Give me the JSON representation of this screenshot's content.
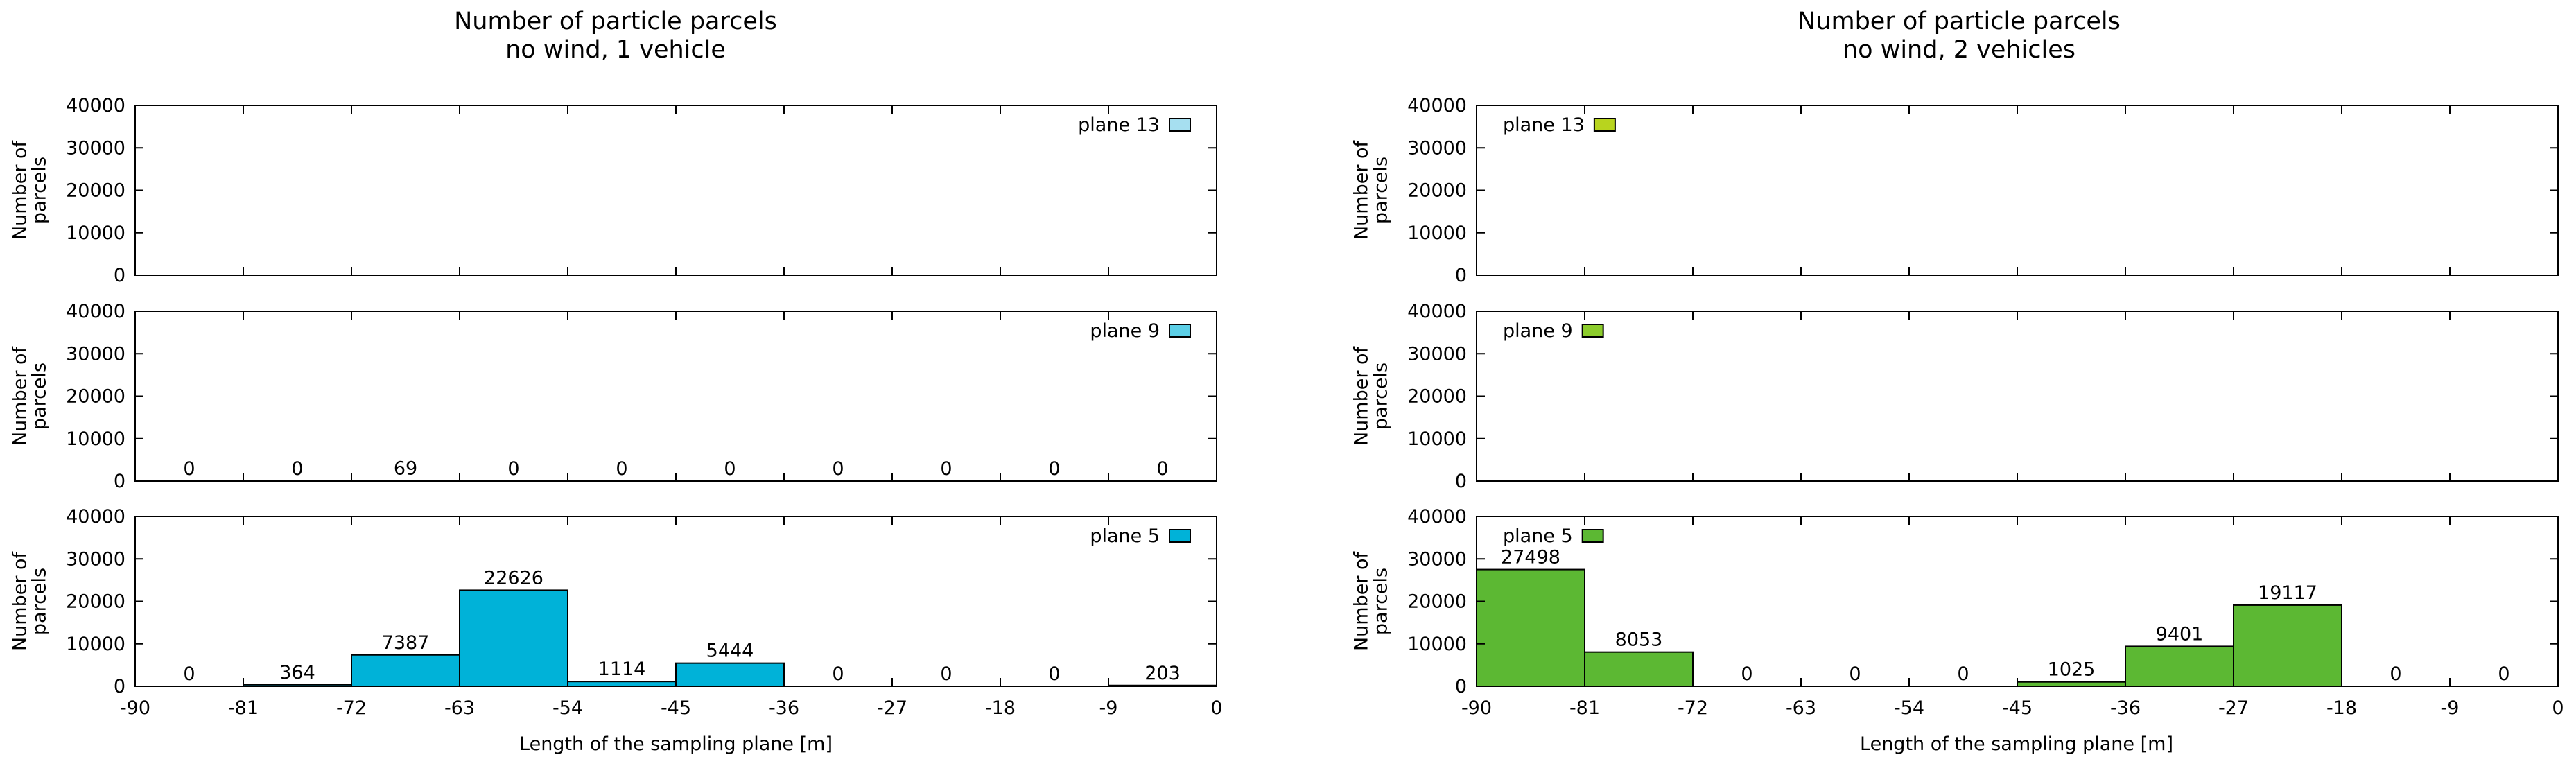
{
  "chart_data": [
    {
      "type": "bar",
      "title_line1": "Number of particle parcels",
      "title_line2": "no wind, 1 vehicle",
      "xlabel": "Length of the sampling plane [m]",
      "ylabel_line1": "Number of",
      "ylabel_line2": "parcels",
      "x_ticks": [
        "-90",
        "-81",
        "-72",
        "-63",
        "-54",
        "-45",
        "-36",
        "-27",
        "-18",
        "-9",
        "0"
      ],
      "y_ticks": [
        "0",
        "10000",
        "20000",
        "30000",
        "40000"
      ],
      "xlim": [
        -90,
        0
      ],
      "ylim": [
        0,
        40000
      ],
      "legend_position": "top-right",
      "panels": [
        {
          "name": "plane 13",
          "color": "#a6dff0",
          "bins": [],
          "values": [],
          "labels": []
        },
        {
          "name": "plane 9",
          "color": "#5ccfe6",
          "bins": [
            [
              -90,
              -81
            ],
            [
              -81,
              -72
            ],
            [
              -72,
              -63
            ],
            [
              -63,
              -54
            ],
            [
              -54,
              -45
            ],
            [
              -45,
              -36
            ],
            [
              -36,
              -27
            ],
            [
              -27,
              -18
            ],
            [
              -18,
              -9
            ],
            [
              -9,
              0
            ]
          ],
          "values": [
            0,
            0,
            69,
            0,
            0,
            0,
            0,
            0,
            0,
            0
          ],
          "labels": [
            "0",
            "0",
            "69",
            "0",
            "0",
            "0",
            "0",
            "0",
            "0",
            "0"
          ]
        },
        {
          "name": "plane 5",
          "color": "#00b2d8",
          "bins": [
            [
              -90,
              -81
            ],
            [
              -81,
              -72
            ],
            [
              -72,
              -63
            ],
            [
              -63,
              -54
            ],
            [
              -54,
              -45
            ],
            [
              -45,
              -36
            ],
            [
              -36,
              -27
            ],
            [
              -27,
              -18
            ],
            [
              -18,
              -9
            ],
            [
              -9,
              0
            ]
          ],
          "values": [
            0,
            364,
            7387,
            22626,
            1114,
            5444,
            0,
            0,
            0,
            203
          ],
          "labels": [
            "0",
            "364",
            "7387",
            "22626",
            "1114",
            "5444",
            "0",
            "0",
            "0",
            "203"
          ]
        }
      ]
    },
    {
      "type": "bar",
      "title_line1": "Number of particle parcels",
      "title_line2": "no wind, 2 vehicles",
      "xlabel": "Length of the sampling plane [m]",
      "ylabel_line1": "Number of",
      "ylabel_line2": "parcels",
      "x_ticks": [
        "-90",
        "-81",
        "-72",
        "-63",
        "-54",
        "-45",
        "-36",
        "-27",
        "-18",
        "-9",
        "0"
      ],
      "y_ticks": [
        "0",
        "10000",
        "20000",
        "30000",
        "40000"
      ],
      "xlim": [
        -90,
        0
      ],
      "ylim": [
        0,
        40000
      ],
      "legend_position": "top-left",
      "panels": [
        {
          "name": "plane 13",
          "color": "#b8d41e",
          "bins": [],
          "values": [],
          "labels": []
        },
        {
          "name": "plane 9",
          "color": "#8ccc2c",
          "bins": [],
          "values": [],
          "labels": []
        },
        {
          "name": "plane 5",
          "color": "#5cb833",
          "bins": [
            [
              -90,
              -81
            ],
            [
              -81,
              -72
            ],
            [
              -72,
              -63
            ],
            [
              -63,
              -54
            ],
            [
              -54,
              -45
            ],
            [
              -45,
              -36
            ],
            [
              -36,
              -27
            ],
            [
              -27,
              -18
            ],
            [
              -18,
              -9
            ],
            [
              -9,
              0
            ]
          ],
          "values": [
            27498,
            8053,
            0,
            0,
            0,
            1025,
            9401,
            19117,
            0,
            0
          ],
          "labels": [
            "27498",
            "8053",
            "0",
            "0",
            "0",
            "1025",
            "9401",
            "19117",
            "0",
            "0"
          ]
        }
      ]
    }
  ]
}
